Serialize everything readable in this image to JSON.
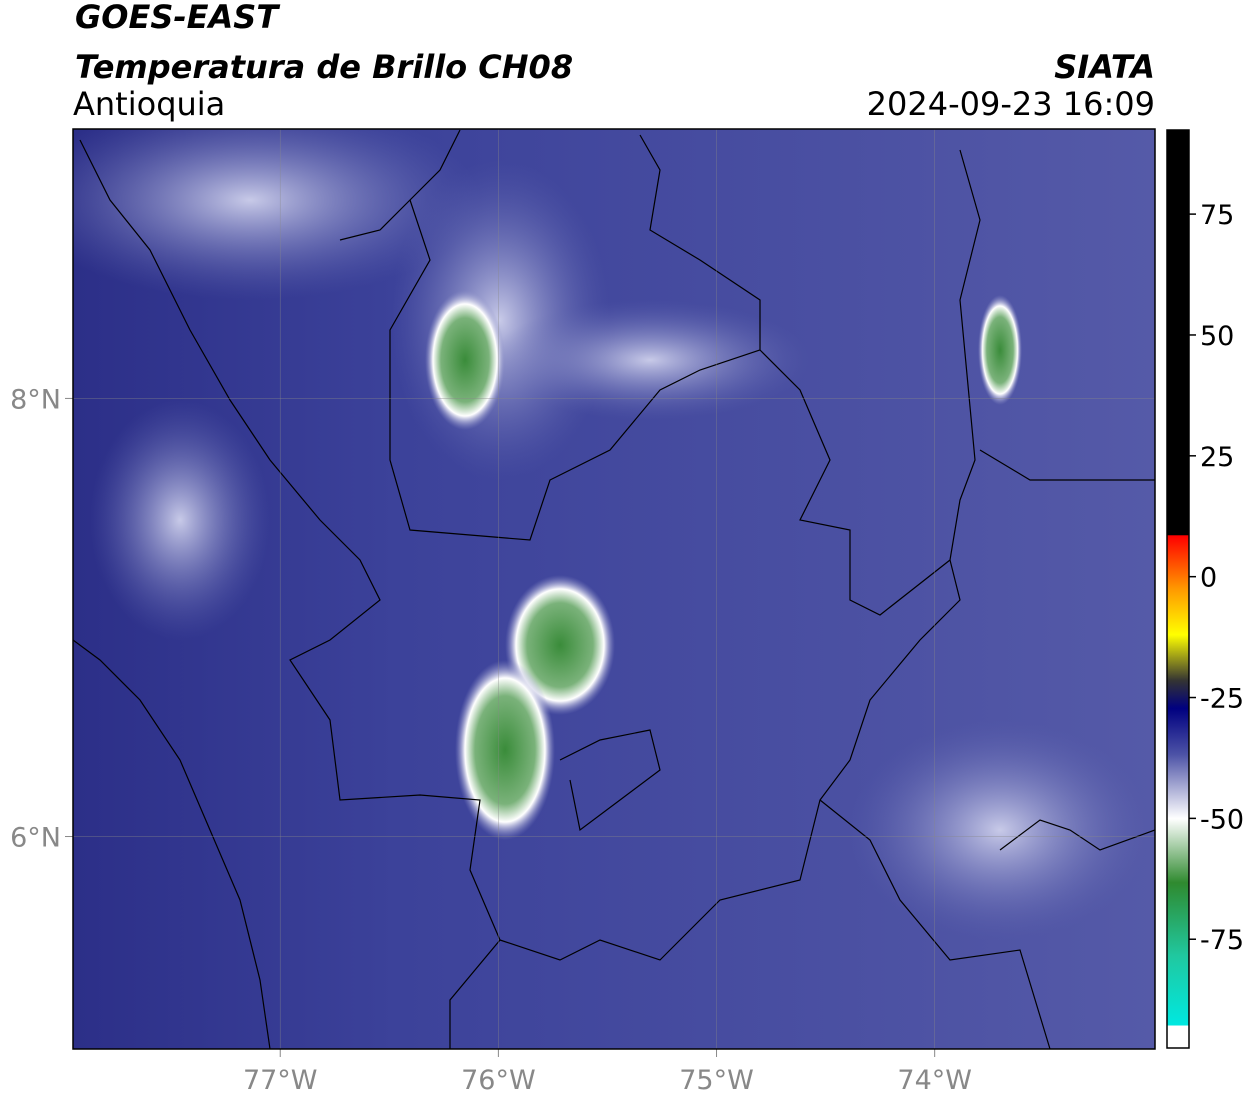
{
  "header": {
    "title": "GOES-EAST",
    "subtitle": "Temperatura de Brillo CH08",
    "region": "Antioquia",
    "source": "SIATA",
    "datetime": "2024-09-23 16:09"
  },
  "map": {
    "xlim": [
      -77.95,
      -72.99
    ],
    "ylim": [
      5.03,
      9.23
    ],
    "xticks": [
      {
        "value": -77,
        "label": "77°W"
      },
      {
        "value": -76,
        "label": "76°W"
      },
      {
        "value": -75,
        "label": "75°W"
      },
      {
        "value": -74,
        "label": "74°W"
      }
    ],
    "yticks": [
      {
        "value": 6,
        "label": "6°N"
      },
      {
        "value": 8,
        "label": "8°N"
      }
    ]
  },
  "colorbar": {
    "lim": [
      -97.5,
      92.4
    ],
    "ticks": [
      75,
      50,
      25,
      0,
      -25,
      -50,
      -75
    ]
  }
}
